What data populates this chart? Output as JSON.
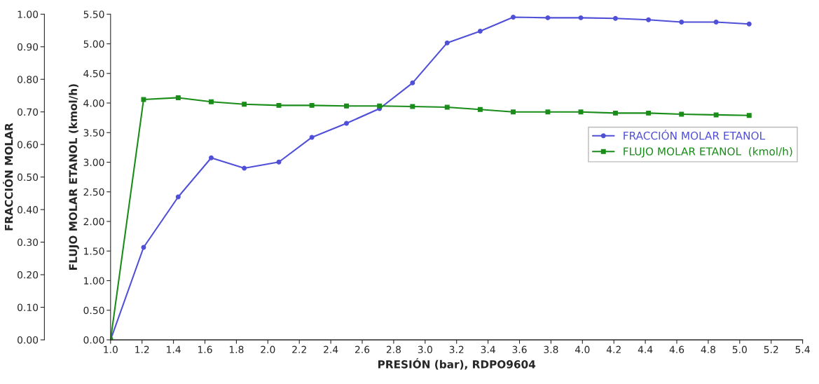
{
  "chart_data": {
    "type": "line",
    "xlabel": "PRESIÓN (bar), RDPO9604",
    "ylabel": "FRACCIÓN MOLAR",
    "y2label": "FLUJO MOLAR ETANOL (kmol/h)",
    "x": [
      1.0,
      1.21,
      1.43,
      1.64,
      1.85,
      2.07,
      2.28,
      2.5,
      2.71,
      2.92,
      3.14,
      3.35,
      3.56,
      3.78,
      3.99,
      4.21,
      4.42,
      4.63,
      4.85,
      5.06
    ],
    "series": [
      {
        "name": "FRACCIÓN MOLAR ETANOL",
        "color": "#4f4fd8",
        "marker": "circle",
        "values": [
          0,
          0.284,
          0.439,
          0.559,
          0.527,
          0.546,
          0.622,
          0.665,
          0.71,
          0.789,
          0.912,
          0.948,
          0.991,
          0.989,
          0.989,
          0.987,
          0.983,
          0.976,
          0.976,
          0.97
        ]
      },
      {
        "name": "FLUJO MOLAR ETANOL  (kmol/h)",
        "color": "#1a8c1a",
        "marker": "square",
        "axis": "y2",
        "values": [
          0,
          4.06,
          4.09,
          4.02,
          3.98,
          3.96,
          3.96,
          3.95,
          3.95,
          3.94,
          3.93,
          3.89,
          3.85,
          3.85,
          3.85,
          3.83,
          3.83,
          3.81,
          3.8,
          3.79
        ]
      }
    ],
    "xlim": [
      1.0,
      5.4
    ],
    "xticks": [
      {
        "value": 1.0,
        "label": "1.0"
      },
      1.2,
      1.4,
      1.6,
      1.8,
      {
        "value": 2.0,
        "label": "2.0"
      },
      2.2,
      2.4,
      2.6,
      2.8,
      {
        "value": 3.0,
        "label": "3.0"
      },
      3.2,
      3.4,
      3.6,
      3.8,
      {
        "value": 4.0,
        "label": "4.0"
      },
      4.2,
      4.4,
      4.6,
      4.8,
      {
        "value": 5.0,
        "label": "5.0"
      },
      5.2,
      5.4
    ],
    "ylim": [
      0,
      1.0
    ],
    "yticks": [
      {
        "value": 0,
        "label": "0.00"
      },
      {
        "value": 0.1,
        "label": "0.10"
      },
      {
        "value": 0.2,
        "label": "0.20"
      },
      {
        "value": 0.3,
        "label": "0.30"
      },
      {
        "value": 0.4,
        "label": "0.40"
      },
      {
        "value": 0.5,
        "label": "0.50"
      },
      {
        "value": 0.6,
        "label": "0.60"
      },
      {
        "value": 0.7,
        "label": "0.70"
      },
      {
        "value": 0.8,
        "label": "0.80"
      },
      {
        "value": 0.9,
        "label": "0.90"
      },
      {
        "value": 1.0,
        "label": "1.00"
      }
    ],
    "y2lim": [
      0,
      5.5
    ],
    "y2ticks": [
      {
        "value": 0,
        "label": "0.00"
      },
      {
        "value": 0.5,
        "label": "0.50"
      },
      {
        "value": 1.0,
        "label": "1.00"
      },
      {
        "value": 1.5,
        "label": "1.50"
      },
      {
        "value": 2.0,
        "label": "2.00"
      },
      {
        "value": 2.5,
        "label": "2.50"
      },
      {
        "value": 3.0,
        "label": "3.00"
      },
      {
        "value": 3.5,
        "label": "3.50"
      },
      {
        "value": 4.0,
        "label": "4.00"
      },
      {
        "value": 4.5,
        "label": "4.50"
      },
      {
        "value": 5.0,
        "label": "5.00"
      },
      {
        "value": 5.5,
        "label": "5.50"
      }
    ],
    "legend": "right",
    "grid": false
  }
}
